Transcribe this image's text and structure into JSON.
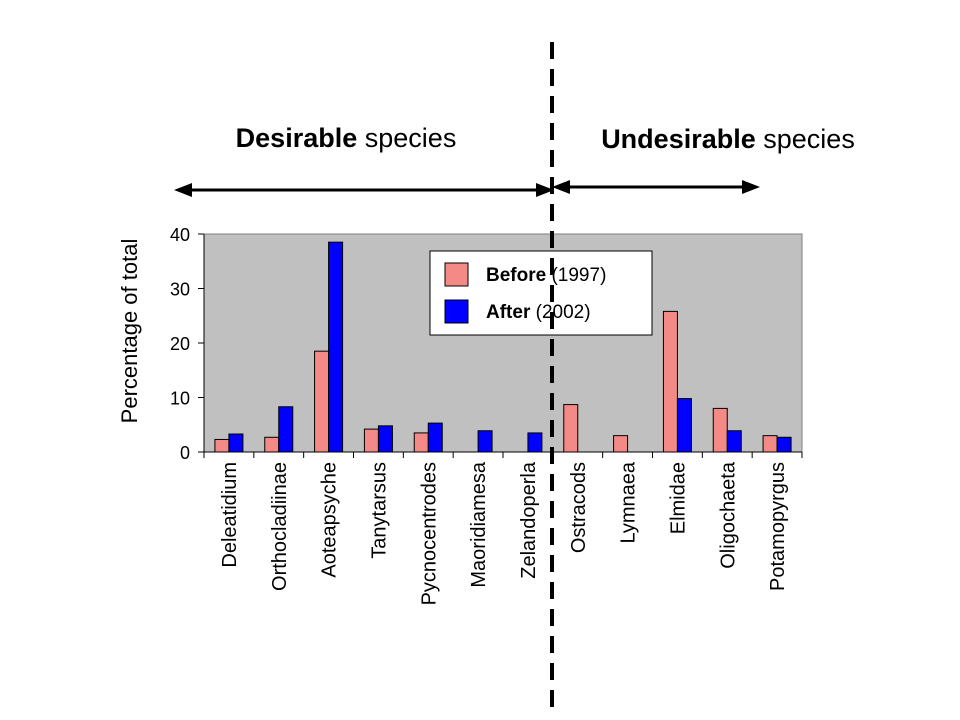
{
  "groups": {
    "desirable": {
      "bold": "Desirable",
      "rest": "species"
    },
    "undesirable": {
      "bold": "Undesirable",
      "rest": "species"
    }
  },
  "legend": [
    {
      "bold": "Before",
      "rest": "(1997)",
      "color": "#f48a86"
    },
    {
      "bold": "After",
      "rest": "(2002)",
      "color": "#0000ff"
    }
  ],
  "colors": {
    "plot_bg": "#c0c0c0",
    "divider": "#000000"
  },
  "chart_data": {
    "type": "bar",
    "ylabel": "Percentage of total",
    "xlabel": "",
    "ylim": [
      0,
      40
    ],
    "yticks": [
      0,
      10,
      20,
      30,
      40
    ],
    "grid": false,
    "legend_position": "top-right",
    "categories": [
      "Deleatidium",
      "Orthocladiinae",
      "Aoteapsyche",
      "Tanytarsus",
      "Pycnocentrodes",
      "Maoridiamesa",
      "Zelandoperla",
      "Ostracods",
      "Lymnaea",
      "Elmidae",
      "Oligochaeta",
      "Potamopyrgus"
    ],
    "series": [
      {
        "name": "Before (1997)",
        "values": [
          2.3,
          2.7,
          18.5,
          4.2,
          3.5,
          0,
          0,
          8.7,
          3.0,
          25.8,
          8.0,
          3.0
        ]
      },
      {
        "name": "After (2002)",
        "values": [
          3.3,
          8.3,
          38.5,
          4.8,
          5.3,
          3.9,
          3.5,
          0,
          0,
          9.8,
          3.9,
          2.7
        ]
      }
    ]
  }
}
